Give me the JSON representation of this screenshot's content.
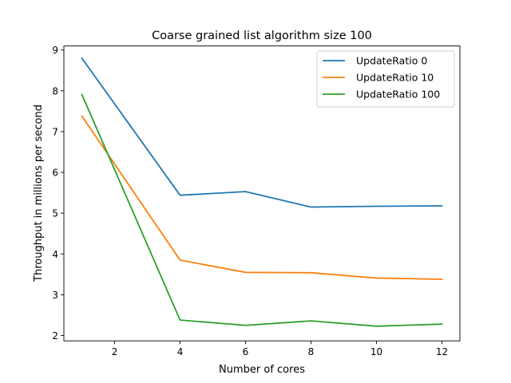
{
  "chart_data": {
    "type": "line",
    "title": "Coarse grained list algorithm size 100",
    "xlabel": "Number of cores",
    "ylabel": "Throughput in millions per second",
    "x": [
      1,
      4,
      6,
      8,
      10,
      12
    ],
    "xlim": [
      0.45,
      12.55
    ],
    "ylim": [
      1.87,
      9.1
    ],
    "xticks": [
      2,
      4,
      6,
      8,
      10,
      12
    ],
    "yticks": [
      2,
      3,
      4,
      5,
      6,
      7,
      8,
      9
    ],
    "grid": false,
    "legend_position": "top-right",
    "series": [
      {
        "name": "UpdateRatio 0",
        "color": "#1f77b4",
        "values": [
          8.8,
          5.44,
          5.53,
          5.15,
          5.17,
          5.18
        ]
      },
      {
        "name": "UpdateRatio 10",
        "color": "#ff7f0e",
        "values": [
          7.38,
          3.85,
          3.55,
          3.54,
          3.41,
          3.38
        ]
      },
      {
        "name": "UpdateRatio 100",
        "color": "#2ca02c",
        "values": [
          7.91,
          2.38,
          2.25,
          2.36,
          2.23,
          2.28
        ]
      }
    ]
  }
}
